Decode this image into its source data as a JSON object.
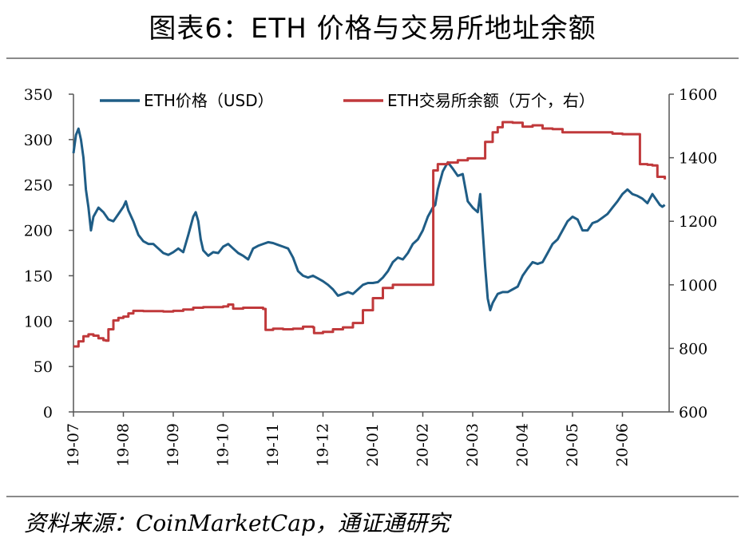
{
  "title": "图表6：ETH 价格与交易所地址余额",
  "source": "资料来源：CoinMarketCap，通证通研究",
  "chart_data": {
    "type": "line",
    "x_categories": [
      "19-07",
      "19-08",
      "19-09",
      "19-10",
      "19-11",
      "19-12",
      "20-01",
      "20-02",
      "20-03",
      "20-04",
      "20-05",
      "20-06"
    ],
    "x_range": [
      0,
      11.85
    ],
    "grid": false,
    "legend_placement": "top",
    "y_left": {
      "range": [
        0,
        350
      ],
      "ticks": [
        0,
        50,
        100,
        150,
        200,
        250,
        300,
        350
      ]
    },
    "y_right": {
      "range": [
        600,
        1600
      ],
      "ticks": [
        600,
        800,
        1000,
        1200,
        1400,
        1600
      ]
    },
    "series": [
      {
        "name": "ETH价格（USD）",
        "axis": "left",
        "color": "#1f5d86",
        "points": [
          [
            0.0,
            285
          ],
          [
            0.05,
            305
          ],
          [
            0.1,
            312
          ],
          [
            0.15,
            300
          ],
          [
            0.2,
            280
          ],
          [
            0.25,
            245
          ],
          [
            0.3,
            225
          ],
          [
            0.35,
            200
          ],
          [
            0.4,
            215
          ],
          [
            0.5,
            225
          ],
          [
            0.6,
            220
          ],
          [
            0.7,
            212
          ],
          [
            0.8,
            210
          ],
          [
            0.9,
            218
          ],
          [
            1.0,
            226
          ],
          [
            1.05,
            232
          ],
          [
            1.1,
            222
          ],
          [
            1.2,
            210
          ],
          [
            1.3,
            195
          ],
          [
            1.4,
            188
          ],
          [
            1.5,
            185
          ],
          [
            1.6,
            185
          ],
          [
            1.7,
            180
          ],
          [
            1.8,
            175
          ],
          [
            1.9,
            173
          ],
          [
            2.0,
            176
          ],
          [
            2.1,
            180
          ],
          [
            2.2,
            176
          ],
          [
            2.3,
            195
          ],
          [
            2.4,
            215
          ],
          [
            2.45,
            220
          ],
          [
            2.5,
            210
          ],
          [
            2.55,
            190
          ],
          [
            2.6,
            178
          ],
          [
            2.7,
            172
          ],
          [
            2.8,
            176
          ],
          [
            2.9,
            175
          ],
          [
            3.0,
            182
          ],
          [
            3.1,
            185
          ],
          [
            3.2,
            180
          ],
          [
            3.3,
            175
          ],
          [
            3.4,
            172
          ],
          [
            3.5,
            168
          ],
          [
            3.6,
            180
          ],
          [
            3.7,
            183
          ],
          [
            3.8,
            185
          ],
          [
            3.9,
            187
          ],
          [
            4.0,
            186
          ],
          [
            4.1,
            184
          ],
          [
            4.2,
            182
          ],
          [
            4.3,
            180
          ],
          [
            4.4,
            170
          ],
          [
            4.5,
            155
          ],
          [
            4.6,
            150
          ],
          [
            4.7,
            148
          ],
          [
            4.8,
            150
          ],
          [
            4.9,
            147
          ],
          [
            5.0,
            144
          ],
          [
            5.1,
            140
          ],
          [
            5.2,
            135
          ],
          [
            5.3,
            128
          ],
          [
            5.4,
            130
          ],
          [
            5.5,
            132
          ],
          [
            5.6,
            130
          ],
          [
            5.7,
            135
          ],
          [
            5.8,
            140
          ],
          [
            5.9,
            142
          ],
          [
            6.0,
            142
          ],
          [
            6.1,
            143
          ],
          [
            6.2,
            148
          ],
          [
            6.3,
            155
          ],
          [
            6.4,
            165
          ],
          [
            6.5,
            170
          ],
          [
            6.6,
            168
          ],
          [
            6.7,
            175
          ],
          [
            6.8,
            185
          ],
          [
            6.9,
            190
          ],
          [
            7.0,
            200
          ],
          [
            7.1,
            215
          ],
          [
            7.2,
            225
          ],
          [
            7.25,
            228
          ],
          [
            7.3,
            245
          ],
          [
            7.4,
            265
          ],
          [
            7.5,
            275
          ],
          [
            7.6,
            268
          ],
          [
            7.7,
            260
          ],
          [
            7.8,
            262
          ],
          [
            7.9,
            232
          ],
          [
            8.0,
            225
          ],
          [
            8.1,
            220
          ],
          [
            8.15,
            240
          ],
          [
            8.2,
            200
          ],
          [
            8.25,
            160
          ],
          [
            8.3,
            125
          ],
          [
            8.35,
            112
          ],
          [
            8.4,
            120
          ],
          [
            8.5,
            130
          ],
          [
            8.6,
            132
          ],
          [
            8.7,
            132
          ],
          [
            8.8,
            135
          ],
          [
            8.9,
            138
          ],
          [
            9.0,
            150
          ],
          [
            9.1,
            158
          ],
          [
            9.2,
            165
          ],
          [
            9.3,
            163
          ],
          [
            9.4,
            165
          ],
          [
            9.5,
            175
          ],
          [
            9.6,
            185
          ],
          [
            9.7,
            190
          ],
          [
            9.8,
            200
          ],
          [
            9.9,
            210
          ],
          [
            10.0,
            215
          ],
          [
            10.1,
            212
          ],
          [
            10.2,
            200
          ],
          [
            10.3,
            200
          ],
          [
            10.4,
            208
          ],
          [
            10.5,
            210
          ],
          [
            10.6,
            214
          ],
          [
            10.7,
            218
          ],
          [
            10.8,
            225
          ],
          [
            10.9,
            232
          ],
          [
            11.0,
            240
          ],
          [
            11.1,
            245
          ],
          [
            11.2,
            240
          ],
          [
            11.3,
            238
          ],
          [
            11.4,
            235
          ],
          [
            11.5,
            230
          ],
          [
            11.6,
            240
          ],
          [
            11.7,
            232
          ],
          [
            11.75,
            228
          ],
          [
            11.8,
            226
          ],
          [
            11.85,
            228
          ]
        ]
      },
      {
        "name": "ETH交易所余额（万个，右）",
        "axis": "right",
        "color": "#c0393b",
        "points": [
          [
            0.0,
            806
          ],
          [
            0.1,
            822
          ],
          [
            0.2,
            838
          ],
          [
            0.3,
            844
          ],
          [
            0.4,
            840
          ],
          [
            0.5,
            832
          ],
          [
            0.6,
            826
          ],
          [
            0.65,
            824
          ],
          [
            0.7,
            860
          ],
          [
            0.8,
            888
          ],
          [
            0.9,
            896
          ],
          [
            1.0,
            900
          ],
          [
            1.1,
            910
          ],
          [
            1.2,
            918
          ],
          [
            1.4,
            917
          ],
          [
            1.6,
            917
          ],
          [
            1.8,
            916
          ],
          [
            2.0,
            918
          ],
          [
            2.2,
            922
          ],
          [
            2.4,
            928
          ],
          [
            2.6,
            930
          ],
          [
            2.8,
            930
          ],
          [
            3.0,
            932
          ],
          [
            3.1,
            938
          ],
          [
            3.2,
            925
          ],
          [
            3.4,
            928
          ],
          [
            3.6,
            928
          ],
          [
            3.8,
            924
          ],
          [
            3.85,
            858
          ],
          [
            4.0,
            862
          ],
          [
            4.2,
            860
          ],
          [
            4.4,
            862
          ],
          [
            4.6,
            868
          ],
          [
            4.8,
            866
          ],
          [
            4.82,
            848
          ],
          [
            5.0,
            852
          ],
          [
            5.2,
            860
          ],
          [
            5.4,
            866
          ],
          [
            5.6,
            880
          ],
          [
            5.8,
            920
          ],
          [
            6.0,
            958
          ],
          [
            6.2,
            990
          ],
          [
            6.4,
            1000
          ],
          [
            6.6,
            1000
          ],
          [
            6.8,
            1000
          ],
          [
            7.0,
            1000
          ],
          [
            7.2,
            1000
          ],
          [
            7.21,
            1360
          ],
          [
            7.3,
            1380
          ],
          [
            7.5,
            1385
          ],
          [
            7.7,
            1392
          ],
          [
            7.9,
            1398
          ],
          [
            8.1,
            1398
          ],
          [
            8.2,
            1398
          ],
          [
            8.25,
            1450
          ],
          [
            8.4,
            1480
          ],
          [
            8.5,
            1496
          ],
          [
            8.6,
            1512
          ],
          [
            8.8,
            1510
          ],
          [
            9.0,
            1498
          ],
          [
            9.2,
            1502
          ],
          [
            9.4,
            1492
          ],
          [
            9.6,
            1490
          ],
          [
            9.8,
            1480
          ],
          [
            10.0,
            1480
          ],
          [
            10.4,
            1480
          ],
          [
            10.8,
            1476
          ],
          [
            11.0,
            1474
          ],
          [
            11.3,
            1474
          ],
          [
            11.35,
            1380
          ],
          [
            11.5,
            1378
          ],
          [
            11.6,
            1376
          ],
          [
            11.7,
            1340
          ],
          [
            11.85,
            1332
          ]
        ]
      }
    ]
  }
}
